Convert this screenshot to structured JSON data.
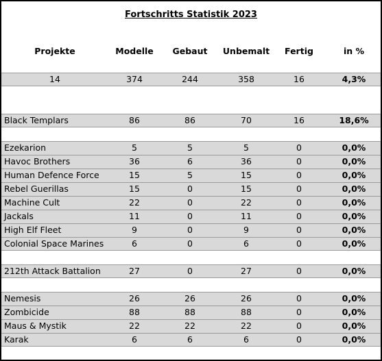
{
  "header": {
    "title": "Fortschritts Statistik 2023"
  },
  "columns": [
    "Projekte",
    "Modelle",
    "Gebaut",
    "Unbemalt",
    "Fertig",
    "in %"
  ],
  "summary": [
    14,
    374,
    244,
    358,
    16,
    "4,3%"
  ],
  "groups": [
    [
      [
        "Black Templars",
        86,
        86,
        70,
        16,
        "18,6%"
      ]
    ],
    [
      [
        "Ezekarion",
        5,
        5,
        5,
        0,
        "0,0%"
      ],
      [
        "Havoc Brothers",
        36,
        6,
        36,
        0,
        "0,0%"
      ],
      [
        "Human Defence Force",
        15,
        5,
        15,
        0,
        "0,0%"
      ],
      [
        "Rebel Guerillas",
        15,
        0,
        15,
        0,
        "0,0%"
      ],
      [
        "Machine Cult",
        22,
        0,
        22,
        0,
        "0,0%"
      ],
      [
        "Jackals",
        11,
        0,
        11,
        0,
        "0,0%"
      ],
      [
        "High Elf Fleet",
        9,
        0,
        9,
        0,
        "0,0%"
      ],
      [
        "Colonial Space Marines",
        6,
        0,
        6,
        0,
        "0,0%"
      ]
    ],
    [
      [
        "212th Attack Battalion",
        27,
        0,
        27,
        0,
        "0,0%"
      ]
    ],
    [
      [
        "Nemesis",
        26,
        26,
        26,
        0,
        "0,0%"
      ],
      [
        "Zombicide",
        88,
        88,
        88,
        0,
        "0,0%"
      ],
      [
        "Maus & Mystik",
        22,
        22,
        22,
        0,
        "0,0%"
      ],
      [
        "Karak",
        6,
        6,
        6,
        0,
        "0,0%"
      ]
    ]
  ]
}
